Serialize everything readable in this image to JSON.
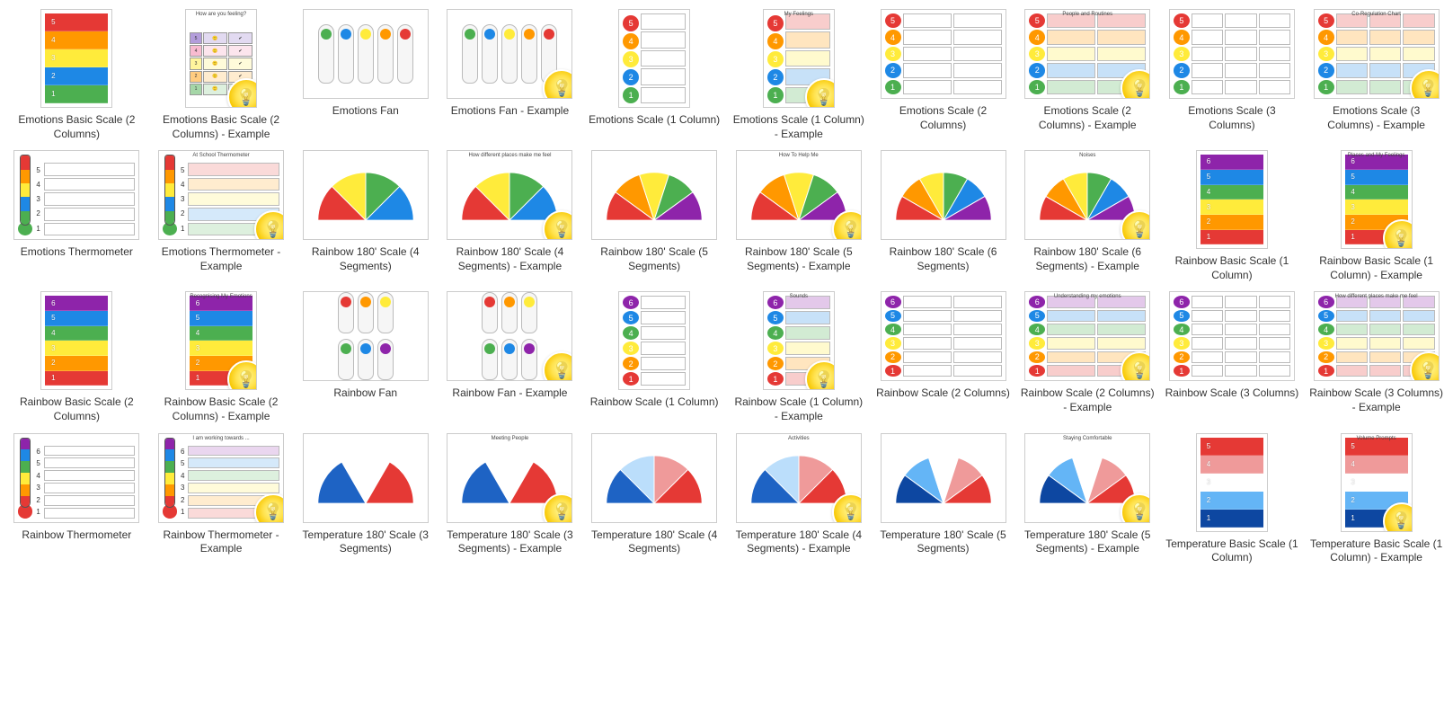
{
  "palette": {
    "five": [
      "#4caf50",
      "#1e88e5",
      "#ffeb3b",
      "#ff9800",
      "#e53935"
    ],
    "six": [
      "#e53935",
      "#ff9800",
      "#ffeb3b",
      "#4caf50",
      "#1e88e5",
      "#8e24aa"
    ],
    "temp": [
      "#0d47a1",
      "#64b5f6",
      "#ffffff",
      "#ef9a9a",
      "#e53935"
    ]
  },
  "items": [
    {
      "title": "Emotions Basic Scale (2 Columns)",
      "thumb": "bars5-p",
      "badge": false,
      "orient": "portrait"
    },
    {
      "title": "Emotions Basic Scale (2 Columns) - Example",
      "thumb": "feel-grid",
      "badge": true,
      "orient": "portrait",
      "mini": "How are you feeling?"
    },
    {
      "title": "Emotions Fan",
      "thumb": "fan5",
      "badge": false,
      "orient": "land"
    },
    {
      "title": "Emotions Fan - Example",
      "thumb": "fan5",
      "badge": true,
      "orient": "land"
    },
    {
      "title": "Emotions Scale (1 Column)",
      "thumb": "circ5-1col",
      "badge": false,
      "orient": "portrait"
    },
    {
      "title": "Emotions Scale (1 Column) - Example",
      "thumb": "circ5-1col-fill",
      "badge": true,
      "orient": "portrait",
      "mini": "My Feelings"
    },
    {
      "title": "Emotions Scale (2 Columns)",
      "thumb": "circ5-2col",
      "badge": false,
      "orient": "land"
    },
    {
      "title": "Emotions Scale (2 Columns) - Example",
      "thumb": "circ5-tbl",
      "badge": true,
      "orient": "land",
      "mini": "People and Routines"
    },
    {
      "title": "Emotions Scale (3 Columns)",
      "thumb": "circ5-3col",
      "badge": false,
      "orient": "land"
    },
    {
      "title": "Emotions Scale (3 Columns) - Example",
      "thumb": "circ5-3tbl",
      "badge": true,
      "orient": "land",
      "mini": "Co-Regulation Chart"
    },
    {
      "title": "Emotions Thermometer",
      "thumb": "thermo5",
      "badge": false,
      "orient": "land"
    },
    {
      "title": "Emotions Thermometer - Example",
      "thumb": "thermo5-fill",
      "badge": true,
      "orient": "land",
      "mini": "At School Thermometer"
    },
    {
      "title": "Rainbow 180' Scale (4 Segments)",
      "thumb": "gauge4",
      "badge": false,
      "orient": "land"
    },
    {
      "title": "Rainbow 180' Scale (4 Segments) - Example",
      "thumb": "gauge4",
      "badge": true,
      "orient": "land",
      "mini": "How different places make me feel"
    },
    {
      "title": "Rainbow 180' Scale (5 Segments)",
      "thumb": "gauge5",
      "badge": false,
      "orient": "land"
    },
    {
      "title": "Rainbow 180' Scale (5 Segments) - Example",
      "thumb": "gauge5",
      "badge": true,
      "orient": "land",
      "mini": "How To Help Me"
    },
    {
      "title": "Rainbow 180' Scale (6 Segments)",
      "thumb": "gauge6",
      "badge": false,
      "orient": "land"
    },
    {
      "title": "Rainbow 180' Scale (6 Segments) - Example",
      "thumb": "gauge6",
      "badge": true,
      "orient": "land",
      "mini": "Noises"
    },
    {
      "title": "Rainbow Basic Scale (1 Column)",
      "thumb": "bars6-p",
      "badge": false,
      "orient": "portrait"
    },
    {
      "title": "Rainbow Basic Scale (1 Column) - Example",
      "thumb": "bars6-fill",
      "badge": true,
      "orient": "portrait",
      "mini": "Places and My Feelings"
    },
    {
      "title": "Rainbow Basic Scale (2 Columns)",
      "thumb": "bars6-p",
      "badge": false,
      "orient": "portrait"
    },
    {
      "title": "Rainbow Basic Scale (2 Columns) - Example",
      "thumb": "bars6-fill",
      "badge": true,
      "orient": "portrait",
      "mini": "Recognising My Emotions"
    },
    {
      "title": "Rainbow Fan",
      "thumb": "fan6",
      "badge": false,
      "orient": "land"
    },
    {
      "title": "Rainbow Fan - Example",
      "thumb": "fan6",
      "badge": true,
      "orient": "land"
    },
    {
      "title": "Rainbow Scale (1 Column)",
      "thumb": "circ6-1col",
      "badge": false,
      "orient": "portrait"
    },
    {
      "title": "Rainbow Scale (1 Column) - Example",
      "thumb": "circ6-1col-fill",
      "badge": true,
      "orient": "portrait",
      "mini": "Sounds"
    },
    {
      "title": "Rainbow Scale (2 Columns)",
      "thumb": "circ6-2col",
      "badge": false,
      "orient": "land"
    },
    {
      "title": "Rainbow Scale (2 Columns) - Example",
      "thumb": "circ6-tbl",
      "badge": true,
      "orient": "land",
      "mini": "Understanding my emotions"
    },
    {
      "title": "Rainbow Scale (3 Columns)",
      "thumb": "circ6-3col",
      "badge": false,
      "orient": "land"
    },
    {
      "title": "Rainbow Scale (3 Columns) - Example",
      "thumb": "circ6-3tbl",
      "badge": true,
      "orient": "land",
      "mini": "How different places make me feel"
    },
    {
      "title": "Rainbow Thermometer",
      "thumb": "thermo6",
      "badge": false,
      "orient": "land"
    },
    {
      "title": "Rainbow Thermometer - Example",
      "thumb": "thermo6-fill",
      "badge": true,
      "orient": "land",
      "mini": "I am working towards ..."
    },
    {
      "title": "Temperature 180' Scale (3 Segments)",
      "thumb": "tgauge3",
      "badge": false,
      "orient": "land"
    },
    {
      "title": "Temperature 180' Scale (3 Segments) - Example",
      "thumb": "tgauge3",
      "badge": true,
      "orient": "land",
      "mini": "Meeting People"
    },
    {
      "title": "Temperature 180' Scale (4 Segments)",
      "thumb": "tgauge4",
      "badge": false,
      "orient": "land"
    },
    {
      "title": "Temperature 180' Scale (4 Segments) - Example",
      "thumb": "tgauge4",
      "badge": true,
      "orient": "land",
      "mini": "Activities"
    },
    {
      "title": "Temperature 180' Scale (5 Segments)",
      "thumb": "tgauge5",
      "badge": false,
      "orient": "land"
    },
    {
      "title": "Temperature 180' Scale (5 Segments) - Example",
      "thumb": "tgauge5",
      "badge": true,
      "orient": "land",
      "mini": "Staying Comfortable"
    },
    {
      "title": "Temperature Basic Scale (1 Column)",
      "thumb": "tbars5-p",
      "badge": false,
      "orient": "portrait"
    },
    {
      "title": "Temperature Basic Scale (1 Column) - Example",
      "thumb": "tbars5-fill",
      "badge": true,
      "orient": "portrait",
      "mini": "Volume Prompts"
    }
  ]
}
